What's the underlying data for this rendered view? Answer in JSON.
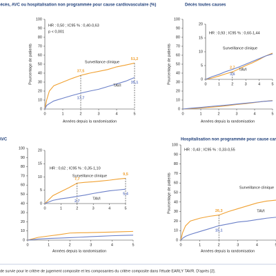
{
  "chart_data": [
    {
      "type": "line",
      "title": "Décès, AVC ou hospitalisation non programmée pour cause cardiovasculaire (%)",
      "xlabel": "Années depuis la randomisation",
      "ylabel": "Pourcentage de patients",
      "xlim": [
        0,
        5
      ],
      "ylim": [
        0,
        100
      ],
      "xticks": [
        0,
        1,
        2,
        3,
        4,
        5
      ],
      "yticks": [
        0,
        10,
        20,
        30,
        40,
        50,
        60,
        70,
        80,
        90,
        100
      ],
      "annotations": [
        "HR : 0,50 ; IC95 % : 0,40-0,63",
        "p < 0,001"
      ],
      "series": [
        {
          "name": "Surveillance clinique",
          "color": "#f0a030",
          "x": [
            0,
            0.1,
            0.25,
            0.5,
            1,
            1.5,
            2,
            2.5,
            3,
            3.5,
            4,
            4.5,
            5
          ],
          "values": [
            0,
            10,
            20,
            26,
            30,
            34,
            37.5,
            40,
            42,
            44,
            47,
            49,
            51.2
          ],
          "marked": {
            "x": [
              2,
              5
            ],
            "values": [
              37.5,
              51.2
            ],
            "value_labels": [
              "37,5",
              "51,2"
            ]
          }
        },
        {
          "name": "TAVI",
          "color": "#6a7fc8",
          "x": [
            0,
            0.1,
            0.25,
            0.5,
            1,
            1.5,
            2,
            2.5,
            3,
            3.5,
            4,
            4.5,
            5
          ],
          "values": [
            0,
            4,
            6,
            9,
            12,
            15,
            17.7,
            20,
            22,
            25,
            28,
            31,
            35.1
          ],
          "marked": {
            "x": [
              2,
              5
            ],
            "values": [
              17.7,
              35.1
            ],
            "value_labels": [
              "17,7",
              "35,1"
            ]
          }
        }
      ]
    },
    {
      "type": "line",
      "title": "Décès toutes causes",
      "xlabel": "Années depuis la randomisation",
      "ylabel": "Pourcentage de patients",
      "xlim": [
        0,
        5
      ],
      "ylim": [
        0,
        100
      ],
      "xticks": [
        0,
        1,
        2,
        3,
        4,
        5
      ],
      "yticks": [
        0,
        10,
        20,
        30,
        40,
        50,
        60,
        70,
        80,
        90,
        100
      ],
      "annotations": [
        "HR : 0,93 ; IC95 % : 0,60-1,44"
      ],
      "series": [
        {
          "color": "#f0a030",
          "x": [
            0,
            0.5,
            1,
            1.5,
            2,
            2.5,
            3,
            3.5,
            4,
            4.5,
            5
          ],
          "values": [
            0,
            0.5,
            1.2,
            2,
            2.7,
            3.8,
            5,
            6,
            7.2,
            8.5,
            9.5
          ]
        },
        {
          "color": "#6a7fc8",
          "x": [
            0,
            0.5,
            1,
            1.5,
            2,
            2.5,
            3,
            3.5,
            4,
            4.5,
            5
          ],
          "values": [
            0,
            1,
            1.8,
            2.8,
            3.6,
            4.5,
            5.5,
            6.5,
            7.5,
            8.5,
            9.2
          ]
        }
      ],
      "inset": {
        "xlim": [
          0,
          5
        ],
        "ylim": [
          0,
          20
        ],
        "xticks": [
          0,
          1,
          2,
          3,
          4,
          5
        ],
        "yticks": [
          0,
          5,
          10,
          15,
          20
        ],
        "series": [
          {
            "name": "Surveillance clinique",
            "color": "#f0a030",
            "x": [
              0,
              0.5,
              1,
              1.5,
              2,
              2.5,
              3,
              3.5,
              4,
              4.5,
              5
            ],
            "values": [
              0,
              0.5,
              1.2,
              2,
              2.7,
              3.8,
              5,
              6,
              7.2,
              8.5,
              9.5
            ],
            "marked": {
              "x": [
                2
              ],
              "values": [
                2.7
              ],
              "value_labels": [
                "2,7"
              ]
            }
          },
          {
            "name": "TAVI",
            "color": "#6a7fc8",
            "x": [
              0,
              0.5,
              1,
              1.5,
              2,
              2.5,
              3,
              3.5,
              4,
              4.5,
              5
            ],
            "values": [
              0,
              1,
              1.8,
              2.8,
              3.6,
              4.5,
              5.5,
              6.5,
              7.5,
              8.5,
              9.2
            ],
            "marked": {
              "x": [
                2
              ],
              "values": [
                3.6
              ],
              "value_labels": [
                "3,6"
              ]
            }
          }
        ]
      }
    },
    {
      "type": "line",
      "title": "AVC",
      "xlabel": "Années depuis la randomisation",
      "xlim": [
        0,
        5
      ],
      "ylim": [
        0,
        100
      ],
      "xticks": [
        0,
        1,
        2,
        3,
        4,
        5
      ],
      "yticks": [
        0,
        10,
        20,
        30,
        40,
        50,
        60,
        70,
        80,
        90,
        100
      ],
      "annotations": [
        "HR : 0,62 ; IC95 % : 0,35-1,10"
      ],
      "series": [
        {
          "color": "#f0a030",
          "x": [
            0,
            0.5,
            1,
            1.5,
            2,
            2.5,
            3,
            3.5,
            4,
            4.5,
            5
          ],
          "values": [
            0,
            3,
            4.5,
            6,
            7.7,
            8,
            8.2,
            8.5,
            8.8,
            9.2,
            9.5
          ]
        },
        {
          "color": "#6a7fc8",
          "x": [
            0,
            0.5,
            1,
            1.5,
            2,
            2.5,
            3,
            3.5,
            4,
            4.5,
            5
          ],
          "values": [
            0,
            1.2,
            1.8,
            2.2,
            2.7,
            3.2,
            3.8,
            4.3,
            4.8,
            5.1,
            5.4
          ]
        }
      ],
      "inset": {
        "xlim": [
          0,
          5
        ],
        "ylim": [
          0,
          20
        ],
        "xticks": [
          0,
          1,
          2,
          3,
          4,
          5
        ],
        "yticks": [
          0,
          5,
          10,
          15,
          20
        ],
        "series": [
          {
            "name": "Surveillance clinique",
            "color": "#f0a030",
            "x": [
              0,
              0.5,
              1,
              1.5,
              2,
              2.5,
              3,
              3.5,
              4,
              4.5,
              5
            ],
            "values": [
              0,
              3,
              4.5,
              6,
              7.7,
              8,
              8.2,
              8.5,
              8.8,
              9.2,
              9.5
            ],
            "marked": {
              "x": [
                2,
                5
              ],
              "values": [
                7.7,
                9.5
              ],
              "value_labels": [
                "7,7",
                "9,5"
              ]
            }
          },
          {
            "name": "TAVI",
            "color": "#6a7fc8",
            "x": [
              0,
              0.5,
              1,
              1.5,
              2,
              2.5,
              3,
              3.5,
              4,
              4.5,
              5
            ],
            "values": [
              0,
              1.2,
              1.8,
              2.2,
              2.7,
              3.2,
              3.8,
              4.3,
              4.8,
              5.1,
              5.4
            ],
            "marked": {
              "x": [
                2,
                5
              ],
              "values": [
                2.7,
                5.4
              ],
              "value_labels": [
                "2,7",
                "5,4"
              ]
            }
          }
        ]
      }
    },
    {
      "type": "line",
      "title": "Hospitalisation non programmée pour cause cardiovasculaire (%)",
      "xlabel": "Années depuis la randomisation",
      "ylabel": "Pourcentage de patients",
      "xlim": [
        0,
        5
      ],
      "ylim": [
        0,
        100
      ],
      "xticks": [
        0,
        1,
        2,
        3,
        4,
        5
      ],
      "yticks": [
        0,
        10,
        20,
        30,
        40,
        50,
        60,
        70,
        80,
        90,
        100
      ],
      "annotations": [
        "HR : 0,43 ; IC95 % : 0,33-0,55"
      ],
      "series": [
        {
          "name": "Surveillance clinique",
          "color": "#f0a030",
          "x": [
            0,
            0.1,
            0.25,
            0.5,
            1,
            1.5,
            2,
            2.5,
            3,
            3.5,
            4,
            4.5,
            5
          ],
          "values": [
            0,
            8,
            15,
            20,
            23,
            25,
            26.3,
            30,
            33,
            36,
            39,
            41,
            42
          ],
          "marked": {
            "x": [
              2
            ],
            "values": [
              26.3
            ],
            "value_labels": [
              "26,3"
            ]
          }
        },
        {
          "name": "TAVI",
          "color": "#6a7fc8",
          "x": [
            0,
            0.1,
            0.25,
            0.5,
            1,
            1.5,
            2,
            2.5,
            3,
            3.5,
            4,
            4.5,
            5
          ],
          "values": [
            0,
            2,
            4,
            6,
            9,
            12,
            15.1,
            17,
            19,
            20,
            21.5,
            23,
            24
          ],
          "marked": {
            "x": [
              2
            ],
            "values": [
              15.1
            ],
            "value_labels": [
              "15,1"
            ]
          }
        }
      ]
    }
  ],
  "caption": "de survie pour le critère de jugement composite et les composantes du critère composite dans l'étude EARLY TAVR. D'après [2]."
}
